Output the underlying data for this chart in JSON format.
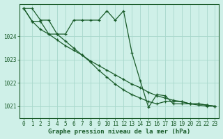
{
  "background_color": "#cff0e8",
  "grid_color": "#a8d8cc",
  "line_color": "#1a5c2a",
  "xlabel": "Graphe pression niveau de la mer (hPa)",
  "ylim": [
    1020.5,
    1025.4
  ],
  "xlim": [
    -0.5,
    23.5
  ],
  "yticks": [
    1021,
    1022,
    1023,
    1024
  ],
  "xticks": [
    0,
    1,
    2,
    3,
    4,
    5,
    6,
    7,
    8,
    9,
    10,
    11,
    12,
    13,
    14,
    15,
    16,
    17,
    18,
    19,
    20,
    21,
    22,
    23
  ],
  "series": [
    [
      1025.2,
      1025.2,
      1024.7,
      1024.7,
      1024.1,
      1024.1,
      1024.7,
      1024.7,
      1024.7,
      1024.7,
      1025.1,
      1024.7,
      1025.1,
      1023.3,
      1022.1,
      1020.95,
      1021.5,
      1021.45,
      1021.1,
      1021.1,
      1021.1,
      1021.1,
      1021.05,
      1021.0
    ],
    [
      1025.2,
      1024.65,
      1024.65,
      1024.1,
      1024.1,
      1023.8,
      1023.5,
      1023.2,
      1022.9,
      1022.55,
      1022.25,
      1021.95,
      1021.7,
      1021.5,
      1021.35,
      1021.2,
      1021.1,
      1021.2,
      1021.2,
      1021.2,
      1021.1,
      1021.1,
      1021.05,
      1021.0
    ],
    [
      1025.2,
      1024.65,
      1024.3,
      1024.1,
      1023.85,
      1023.6,
      1023.4,
      1023.2,
      1022.95,
      1022.75,
      1022.55,
      1022.35,
      1022.15,
      1021.95,
      1021.8,
      1021.6,
      1021.45,
      1021.35,
      1021.25,
      1021.2,
      1021.1,
      1021.05,
      1021.0,
      1021.0
    ]
  ],
  "tick_fontsize": 5.5,
  "label_fontsize": 6.5
}
